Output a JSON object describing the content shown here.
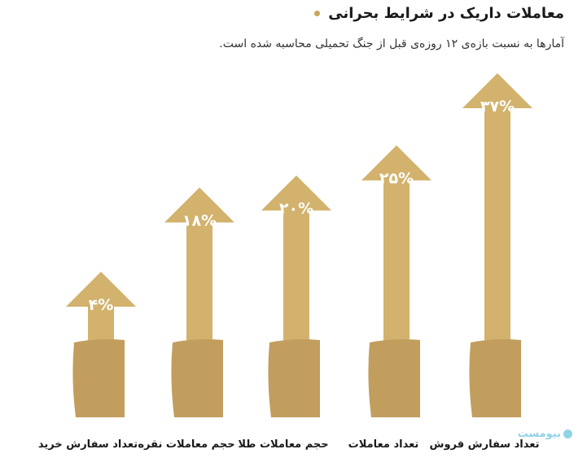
{
  "header": {
    "title": "معاملات داریک در شرایط بحرانی",
    "subtitle": "آمارها به نسبت بازه‌ی ۱۲ روزه‌ی قبل از جنگ تحمیلی محاسبه شده است."
  },
  "logo": {
    "text": "بیومست",
    "icon": "logo-icon"
  },
  "colors": {
    "arrow": "#d2b26c",
    "paper": "#c29e5e",
    "curl": "#dddddd",
    "bullet": "#c8a45c"
  },
  "chart_data": {
    "type": "bar",
    "categories": [
      "تعداد سفارش خرید",
      "حجم معاملات نقره",
      "حجم معاملات طلا",
      "تعداد معاملات",
      "تعداد سفارش فروش"
    ],
    "values": [
      4,
      18,
      20,
      25,
      37
    ],
    "value_labels": [
      "۴%",
      "۱۸%",
      "۲۰%",
      "۲۵%",
      "۳۷%"
    ],
    "title": "معاملات داریک در شرایط بحرانی",
    "subtitle": "آمارها به نسبت بازه‌ی ۱۲ روزه‌ی قبل از جنگ تحمیلی محاسبه شده است.",
    "xlabel": "",
    "ylabel": "",
    "ylim": [
      0,
      37
    ]
  }
}
